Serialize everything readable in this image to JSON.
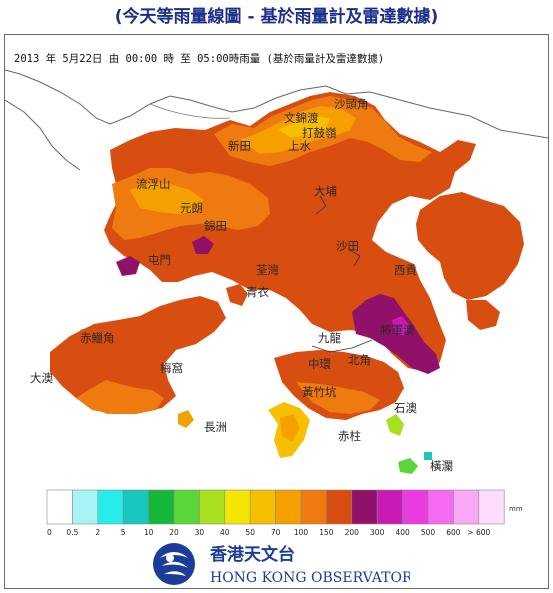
{
  "title": "(今天等雨量線圖 - 基於雨量計及雷達數據)",
  "subtitle": "2013 年  5月22日 由 00:00 時 至 05:00時雨量 (基於雨量計及雷達數據)",
  "places": [
    {
      "key": "sha_tau_kok",
      "label": "沙頭角"
    },
    {
      "key": "kam_tin_do",
      "label": "文錦渡"
    },
    {
      "key": "ta_kwu_ling",
      "label": "打鼓嶺"
    },
    {
      "key": "sheung_shui",
      "label": "上水"
    },
    {
      "key": "san_tin",
      "label": "新田"
    },
    {
      "key": "lau_fau_shan",
      "label": "流浮山"
    },
    {
      "key": "yuen_long",
      "label": "元朗"
    },
    {
      "key": "kam_tin",
      "label": "錦田"
    },
    {
      "key": "tai_po",
      "label": "大埔"
    },
    {
      "key": "sha_tin",
      "label": "沙田"
    },
    {
      "key": "tuen_mun",
      "label": "屯門"
    },
    {
      "key": "tsuen_wan",
      "label": "荃灣"
    },
    {
      "key": "tsing_yi",
      "label": "青衣"
    },
    {
      "key": "sai_kung",
      "label": "西貢"
    },
    {
      "key": "tseung_kwan_o",
      "label": "將軍澳"
    },
    {
      "key": "chek_lap_kok",
      "label": "赤鱲角"
    },
    {
      "key": "kowloon",
      "label": "九龍"
    },
    {
      "key": "tai_o",
      "label": "大澳"
    },
    {
      "key": "mui_wo",
      "label": "梅窩"
    },
    {
      "key": "central",
      "label": "中環"
    },
    {
      "key": "north_point",
      "label": "北角"
    },
    {
      "key": "wong_chuk_hang",
      "label": "黃竹坑"
    },
    {
      "key": "cheung_chau",
      "label": "長洲"
    },
    {
      "key": "stanley",
      "label": "赤柱"
    },
    {
      "key": "shek_o",
      "label": "石澳"
    },
    {
      "key": "waglan",
      "label": "橫瀾"
    }
  ],
  "legend": {
    "unit": "mm",
    "classes": [
      {
        "color": "#ffffff",
        "tick": "0"
      },
      {
        "color": "#a8f4f4",
        "tick": "0.5"
      },
      {
        "color": "#28ecec",
        "tick": "2"
      },
      {
        "color": "#18c8c0",
        "tick": "5"
      },
      {
        "color": "#16b83a",
        "tick": "10"
      },
      {
        "color": "#5ad638",
        "tick": "20"
      },
      {
        "color": "#a8e020",
        "tick": "30"
      },
      {
        "color": "#f4e600",
        "tick": "40"
      },
      {
        "color": "#f6c000",
        "tick": "50"
      },
      {
        "color": "#f6a000",
        "tick": "70"
      },
      {
        "color": "#ee7a10",
        "tick": "100"
      },
      {
        "color": "#d84e10",
        "tick": "150"
      },
      {
        "color": "#90106a",
        "tick": "200"
      },
      {
        "color": "#c81ab4",
        "tick": "300"
      },
      {
        "color": "#ea3ae0",
        "tick": "400"
      },
      {
        "color": "#f46af0",
        "tick": "500"
      },
      {
        "color": "#f8a8f4",
        "tick": "600"
      },
      {
        "color": "#fdddfc",
        "tick": "> 600"
      }
    ]
  },
  "footer": {
    "name_cn": "香港天文台",
    "name_en": "HONG KONG OBSERVATORY",
    "logo": "hko-logo"
  }
}
